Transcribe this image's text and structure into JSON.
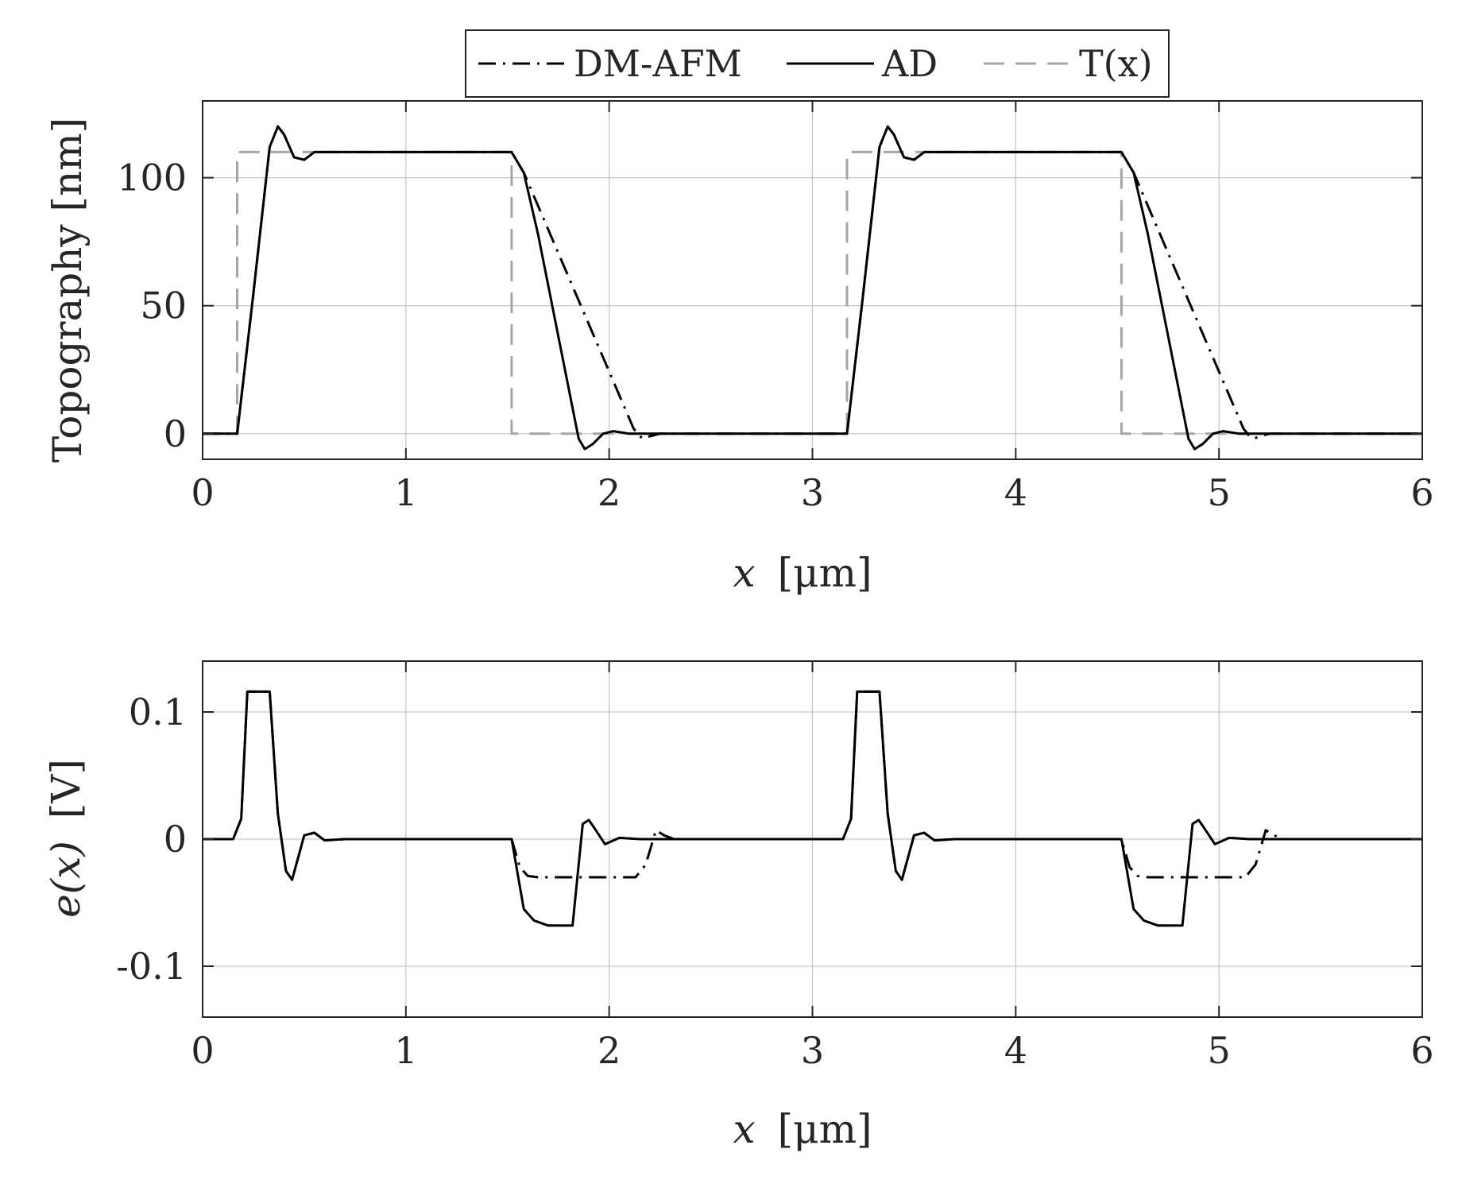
{
  "legend": {
    "entries": [
      {
        "label": "DM-AFM",
        "style": "dash-dot",
        "color": "#000000"
      },
      {
        "label": "AD",
        "style": "solid",
        "color": "#000000"
      },
      {
        "label": "T(x)",
        "style": "dashed",
        "color": "#a6a6a6"
      }
    ]
  },
  "chart_data": [
    {
      "type": "line",
      "title": "",
      "xlabel_var": "x",
      "xlabel_unit": "[μm]",
      "ylabel": "Topography [nm]",
      "xlim": [
        0,
        6
      ],
      "ylim": [
        -10,
        130
      ],
      "xticks": [
        0,
        1,
        2,
        3,
        4,
        5,
        6
      ],
      "xtick_labels": [
        "0",
        "1",
        "2",
        "3",
        "4",
        "5",
        "6"
      ],
      "yticks": [
        0,
        50,
        100
      ],
      "ytick_labels": [
        "0",
        "50",
        "100"
      ],
      "grid": true,
      "series": [
        {
          "name": "DM-AFM",
          "style": "dash-dot",
          "x": [
            0,
            0.17,
            0.25,
            0.33,
            0.37,
            0.4,
            0.45,
            0.5,
            0.55,
            0.65,
            1.52,
            1.58,
            2.12,
            2.15,
            2.17,
            2.2,
            2.25,
            2.3,
            2.4,
            3.17,
            3.25,
            3.33,
            3.37,
            3.4,
            3.45,
            3.5,
            3.55,
            3.65,
            4.52,
            4.58,
            5.12,
            5.15,
            5.17,
            5.2,
            5.25,
            5.3,
            5.4,
            6.0
          ],
          "y": [
            0,
            0,
            55,
            112,
            120,
            117,
            108,
            107,
            110,
            110,
            110,
            102,
            2,
            -1,
            -2,
            -1,
            0,
            0,
            0,
            0,
            55,
            112,
            120,
            117,
            108,
            107,
            110,
            110,
            110,
            102,
            2,
            -1,
            -2,
            -1,
            0,
            0,
            0,
            0
          ]
        },
        {
          "name": "AD",
          "style": "solid",
          "x": [
            0,
            0.17,
            0.25,
            0.33,
            0.37,
            0.4,
            0.45,
            0.5,
            0.55,
            0.65,
            1.52,
            1.58,
            1.65,
            1.85,
            1.88,
            1.92,
            1.97,
            2.02,
            2.1,
            2.4,
            3.17,
            3.25,
            3.33,
            3.37,
            3.4,
            3.45,
            3.5,
            3.55,
            3.65,
            4.52,
            4.58,
            4.65,
            4.85,
            4.88,
            4.92,
            4.97,
            5.02,
            5.1,
            5.4,
            6.0
          ],
          "y": [
            0,
            0,
            55,
            112,
            120,
            117,
            108,
            107,
            110,
            110,
            110,
            102,
            78,
            -2,
            -6,
            -4,
            0,
            1,
            0,
            0,
            0,
            55,
            112,
            120,
            117,
            108,
            107,
            110,
            110,
            110,
            102,
            78,
            -2,
            -6,
            -4,
            0,
            1,
            0,
            0,
            0
          ]
        },
        {
          "name": "T(x)",
          "style": "dashed",
          "x": [
            0,
            0.17,
            0.17,
            1.52,
            1.52,
            3.17,
            3.17,
            4.52,
            4.52,
            6.0
          ],
          "y": [
            0,
            0,
            110,
            110,
            0,
            0,
            110,
            110,
            0,
            0
          ]
        }
      ]
    },
    {
      "type": "line",
      "title": "",
      "xlabel_var": "x",
      "xlabel_unit": "[μm]",
      "ylabel_var": "e(x)",
      "ylabel_unit": "[V]",
      "xlim": [
        0,
        6
      ],
      "ylim": [
        -0.14,
        0.14
      ],
      "xticks": [
        0,
        1,
        2,
        3,
        4,
        5,
        6
      ],
      "xtick_labels": [
        "0",
        "1",
        "2",
        "3",
        "4",
        "5",
        "6"
      ],
      "yticks": [
        -0.1,
        0,
        0.1
      ],
      "ytick_labels": [
        "-0.1",
        "0",
        "0.1"
      ],
      "grid": true,
      "series": [
        {
          "name": "DM-AFM",
          "style": "dash-dot",
          "x": [
            0,
            0.15,
            0.19,
            0.22,
            0.33,
            0.37,
            0.41,
            0.44,
            0.5,
            0.55,
            0.6,
            0.7,
            1.52,
            1.56,
            1.6,
            1.65,
            2.13,
            2.18,
            2.23,
            2.27,
            2.32,
            2.4,
            3.15,
            3.19,
            3.22,
            3.33,
            3.37,
            3.41,
            3.44,
            3.5,
            3.55,
            3.6,
            3.7,
            4.52,
            4.56,
            4.6,
            4.65,
            5.13,
            5.18,
            5.23,
            5.27,
            5.32,
            5.4,
            6.0
          ],
          "y": [
            0,
            0,
            0.016,
            0.116,
            0.116,
            0.02,
            -0.025,
            -0.032,
            0.003,
            0.005,
            -0.001,
            0,
            0,
            -0.022,
            -0.029,
            -0.03,
            -0.03,
            -0.02,
            0.007,
            0.003,
            0,
            0,
            0,
            0.016,
            0.116,
            0.116,
            0.02,
            -0.025,
            -0.032,
            0.003,
            0.005,
            -0.001,
            0,
            0,
            -0.022,
            -0.029,
            -0.03,
            -0.03,
            -0.02,
            0.007,
            0.003,
            0,
            0,
            0
          ]
        },
        {
          "name": "AD",
          "style": "solid",
          "x": [
            0,
            0.15,
            0.19,
            0.22,
            0.33,
            0.37,
            0.41,
            0.44,
            0.5,
            0.55,
            0.6,
            0.7,
            1.52,
            1.58,
            1.63,
            1.7,
            1.82,
            1.87,
            1.9,
            1.93,
            1.98,
            2.05,
            2.15,
            3.15,
            3.19,
            3.22,
            3.33,
            3.37,
            3.41,
            3.44,
            3.5,
            3.55,
            3.6,
            3.7,
            4.52,
            4.58,
            4.63,
            4.7,
            4.82,
            4.87,
            4.9,
            4.93,
            4.98,
            5.05,
            5.15,
            6.0
          ],
          "y": [
            0,
            0,
            0.016,
            0.116,
            0.116,
            0.02,
            -0.025,
            -0.032,
            0.003,
            0.005,
            -0.001,
            0,
            0,
            -0.055,
            -0.064,
            -0.068,
            -0.068,
            0.012,
            0.015,
            0.008,
            -0.004,
            0.001,
            0,
            0,
            0.016,
            0.116,
            0.116,
            0.02,
            -0.025,
            -0.032,
            0.003,
            0.005,
            -0.001,
            0,
            0,
            -0.055,
            -0.064,
            -0.068,
            -0.068,
            0.012,
            0.015,
            0.008,
            -0.004,
            0.001,
            0,
            0
          ]
        }
      ]
    }
  ]
}
